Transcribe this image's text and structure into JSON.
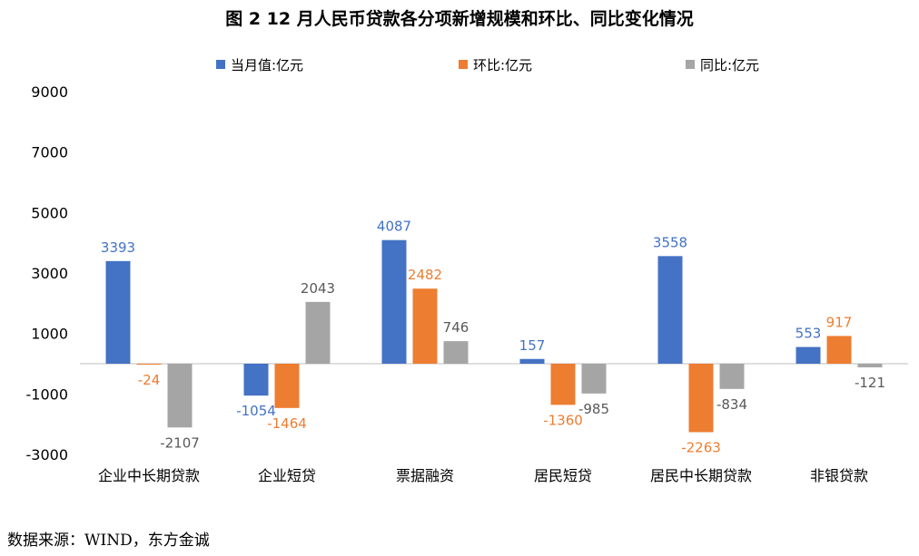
{
  "chart_data": {
    "type": "bar",
    "title": "图 2  12 月人民币贷款各分项新增规模和环比、同比变化情况",
    "categories": [
      "企业中长期贷款",
      "企业短贷",
      "票据融资",
      "居民短贷",
      "居民中长期贷款",
      "非银贷款"
    ],
    "series": [
      {
        "name": "当月值:亿元",
        "color": "#4472C4",
        "label_color": "#4472C4",
        "values": [
          3393,
          -1054,
          4087,
          157,
          3558,
          553
        ]
      },
      {
        "name": "环比:亿元",
        "color": "#ED7D31",
        "label_color": "#ED7D31",
        "values": [
          -24,
          -1464,
          2482,
          -1360,
          -2263,
          917
        ]
      },
      {
        "name": "同比:亿元",
        "color": "#A5A5A5",
        "label_color": "#595959",
        "values": [
          -2107,
          2043,
          746,
          -985,
          -834,
          -121
        ]
      }
    ],
    "yticks": [
      9000,
      7000,
      5000,
      3000,
      1000,
      -1000,
      -3000
    ],
    "ylim": [
      -3000,
      9000
    ],
    "legend": "top",
    "grid": false
  },
  "source": "数据来源：WIND，东方金诚"
}
